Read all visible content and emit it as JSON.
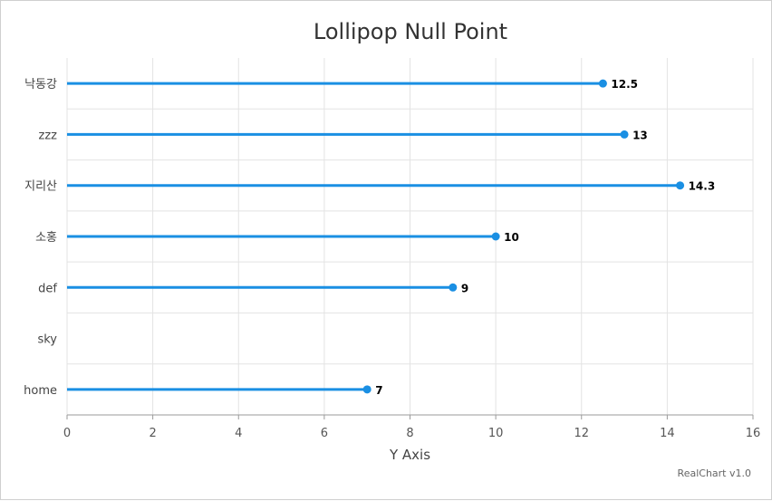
{
  "chart_data": {
    "type": "lollipop",
    "title": "Lollipop Null Point",
    "categories": [
      "낙동강",
      "zzz",
      "지리산",
      "소홍",
      "def",
      "sky",
      "home"
    ],
    "values": [
      12.5,
      13,
      14.3,
      10,
      9,
      null,
      7
    ],
    "value_labels": [
      "12.5",
      "13",
      "14.3",
      "10",
      "9",
      "",
      "7"
    ],
    "xlabel": "",
    "ylabel": "Y Axis",
    "ylim": [
      0,
      16
    ],
    "ticks": [
      "0",
      "2",
      "4",
      "6",
      "8",
      "10",
      "12",
      "14",
      "16"
    ],
    "grid": true,
    "orientation": "horizontal",
    "series_color": "#1a8fe3"
  },
  "credit": "RealChart v1.0"
}
